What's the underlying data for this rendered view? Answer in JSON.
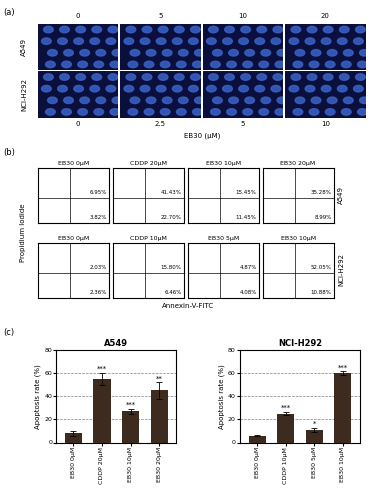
{
  "panel_a": {
    "label": "(a)",
    "x_label": "EB30 (μM)",
    "rows": [
      {
        "name": "A549",
        "doses": [
          "0",
          "5",
          "10",
          "20"
        ]
      },
      {
        "name": "NCI-H292",
        "doses": [
          "0",
          "2.5",
          "5",
          "10"
        ]
      }
    ]
  },
  "panel_b": {
    "label": "(b)",
    "y_label": "Propidium Iodide",
    "x_label": "Annexin-V-FITC",
    "rows": [
      {
        "name": "A549",
        "plots": [
          {
            "title": "EB30 0μM",
            "upper_right": "6.95%",
            "lower_right": "3.82%"
          },
          {
            "title": "CDDP 20μM",
            "upper_right": "41.43%",
            "lower_right": "22.70%"
          },
          {
            "title": "EB30 10μM",
            "upper_right": "15.45%",
            "lower_right": "11.45%"
          },
          {
            "title": "EB30 20μM",
            "upper_right": "35.28%",
            "lower_right": "8.99%"
          }
        ]
      },
      {
        "name": "NCI-H292",
        "plots": [
          {
            "title": "EB30 0μM",
            "upper_right": "2.03%",
            "lower_right": "2.36%"
          },
          {
            "title": "CDDP 10μM",
            "upper_right": "15.80%",
            "lower_right": "6.46%"
          },
          {
            "title": "EB30 5μM",
            "upper_right": "4.87%",
            "lower_right": "4.08%"
          },
          {
            "title": "EB30 10μM",
            "upper_right": "52.05%",
            "lower_right": "10.88%"
          }
        ]
      }
    ]
  },
  "panel_c": {
    "label": "(c)"
  },
  "chart_data": [
    {
      "type": "bar",
      "title": "A549",
      "y_label": "Apoptosis rate (%)",
      "categories": [
        "EB30 0μM",
        "CDDP 20μM",
        "EB30 10μM",
        "EB30 20μM"
      ],
      "values": [
        8,
        55,
        27,
        45
      ],
      "errors": [
        2,
        5,
        2,
        7
      ],
      "annotations": [
        null,
        "***",
        "***",
        "**"
      ],
      "color": "#3d2b1f",
      "ylim": [
        0,
        80
      ],
      "yticks": [
        0,
        20,
        40,
        60,
        80
      ],
      "grid": true
    },
    {
      "type": "bar",
      "title": "NCI-H292",
      "y_label": "Apoptosis rate (%)",
      "categories": [
        "EB30 0μM",
        "CDDP 10μM",
        "EB30 5μM",
        "EB30 10μM"
      ],
      "values": [
        6,
        25,
        11,
        60
      ],
      "errors": [
        0.5,
        1.5,
        1.5,
        1.5
      ],
      "annotations": [
        null,
        "***",
        "*",
        "***"
      ],
      "color": "#3d2b1f",
      "ylim": [
        0,
        80
      ],
      "yticks": [
        0,
        20,
        40,
        60,
        80
      ],
      "grid": true
    }
  ]
}
